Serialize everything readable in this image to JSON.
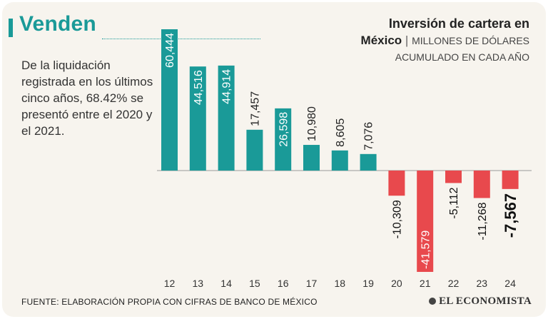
{
  "header": {
    "headline": "Venden",
    "summary": "De la liquidación registrada en los últimos cinco años, 68.42% se presentó entre el 2020 y el 2021."
  },
  "chart_data": {
    "type": "bar",
    "title": "Inversión de cartera en México",
    "title_line1": "Inversión de cartera en",
    "title_line2": "México",
    "separator": "|",
    "units": "MILLONES DE DÓLARES",
    "subtitle": "ACUMULADO EN CADA AÑO",
    "xlabel": "",
    "ylabel": "",
    "categories": [
      "12",
      "13",
      "14",
      "15",
      "16",
      "17",
      "18",
      "19",
      "20",
      "21",
      "22",
      "23",
      "24"
    ],
    "values": [
      60444,
      44516,
      44914,
      17457,
      26598,
      10980,
      8605,
      7076,
      -10309,
      -41579,
      -5112,
      -11268,
      -7567
    ],
    "labels": [
      "60,444",
      "44,516",
      "44,914",
      "17,457",
      "26,598",
      "10,980",
      "8,605",
      "7,076",
      "-10,309",
      "-41,579",
      "-5,112",
      "-11,268",
      "-7,567"
    ],
    "highlight_last": true,
    "ylim": [
      -41579,
      60444
    ],
    "colors": {
      "positive": "#1a9a98",
      "negative": "#e8494d",
      "axis": "#9a9a9a"
    }
  },
  "footer": {
    "source": "FUENTE: ELABORACIÓN PROPIA CON CIFRAS DE BANCO DE MÉXICO",
    "brand": "EL ECONOMISTA"
  }
}
